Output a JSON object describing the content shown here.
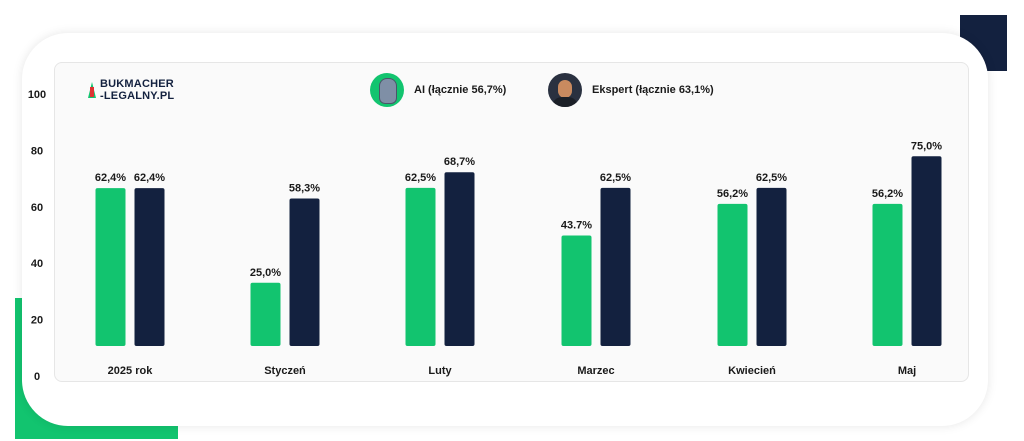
{
  "brand": {
    "line1": "BUKMACHER",
    "line2": "-LEGALNY.PL"
  },
  "legend": [
    {
      "label": "AI (łącznie 56,7%)",
      "icon": "ai-robot-avatar"
    },
    {
      "label": "Ekspert (łącznie 63,1%)",
      "icon": "expert-photo-avatar"
    }
  ],
  "colors": {
    "ai": "#12c46f",
    "expert": "#13213f",
    "accent_navy": "#13213f",
    "accent_green": "#12c46f"
  },
  "chart_data": {
    "type": "bar",
    "categories": [
      "2025 rok",
      "Styczeń",
      "Luty",
      "Marzec",
      "Kwiecień",
      "Maj"
    ],
    "series": [
      {
        "name": "AI (łącznie 56,7%)",
        "values": [
          62.4,
          25.0,
          62.5,
          43.7,
          56.2,
          56.2
        ],
        "labels": [
          "62,4%",
          "25,0%",
          "62,5%",
          "43.7%",
          "56,2%",
          "56,2%"
        ]
      },
      {
        "name": "Ekspert (łącznie 63,1%)",
        "values": [
          62.4,
          58.3,
          68.7,
          62.5,
          62.5,
          75.0
        ],
        "labels": [
          "62,4%",
          "58,3%",
          "68,7%",
          "62,5%",
          "62,5%",
          "75,0%"
        ]
      }
    ],
    "yticks": [
      "0",
      "20",
      "40",
      "60",
      "80",
      "100"
    ],
    "ylim": [
      0,
      100
    ],
    "grid": false,
    "legend_position": "top"
  }
}
